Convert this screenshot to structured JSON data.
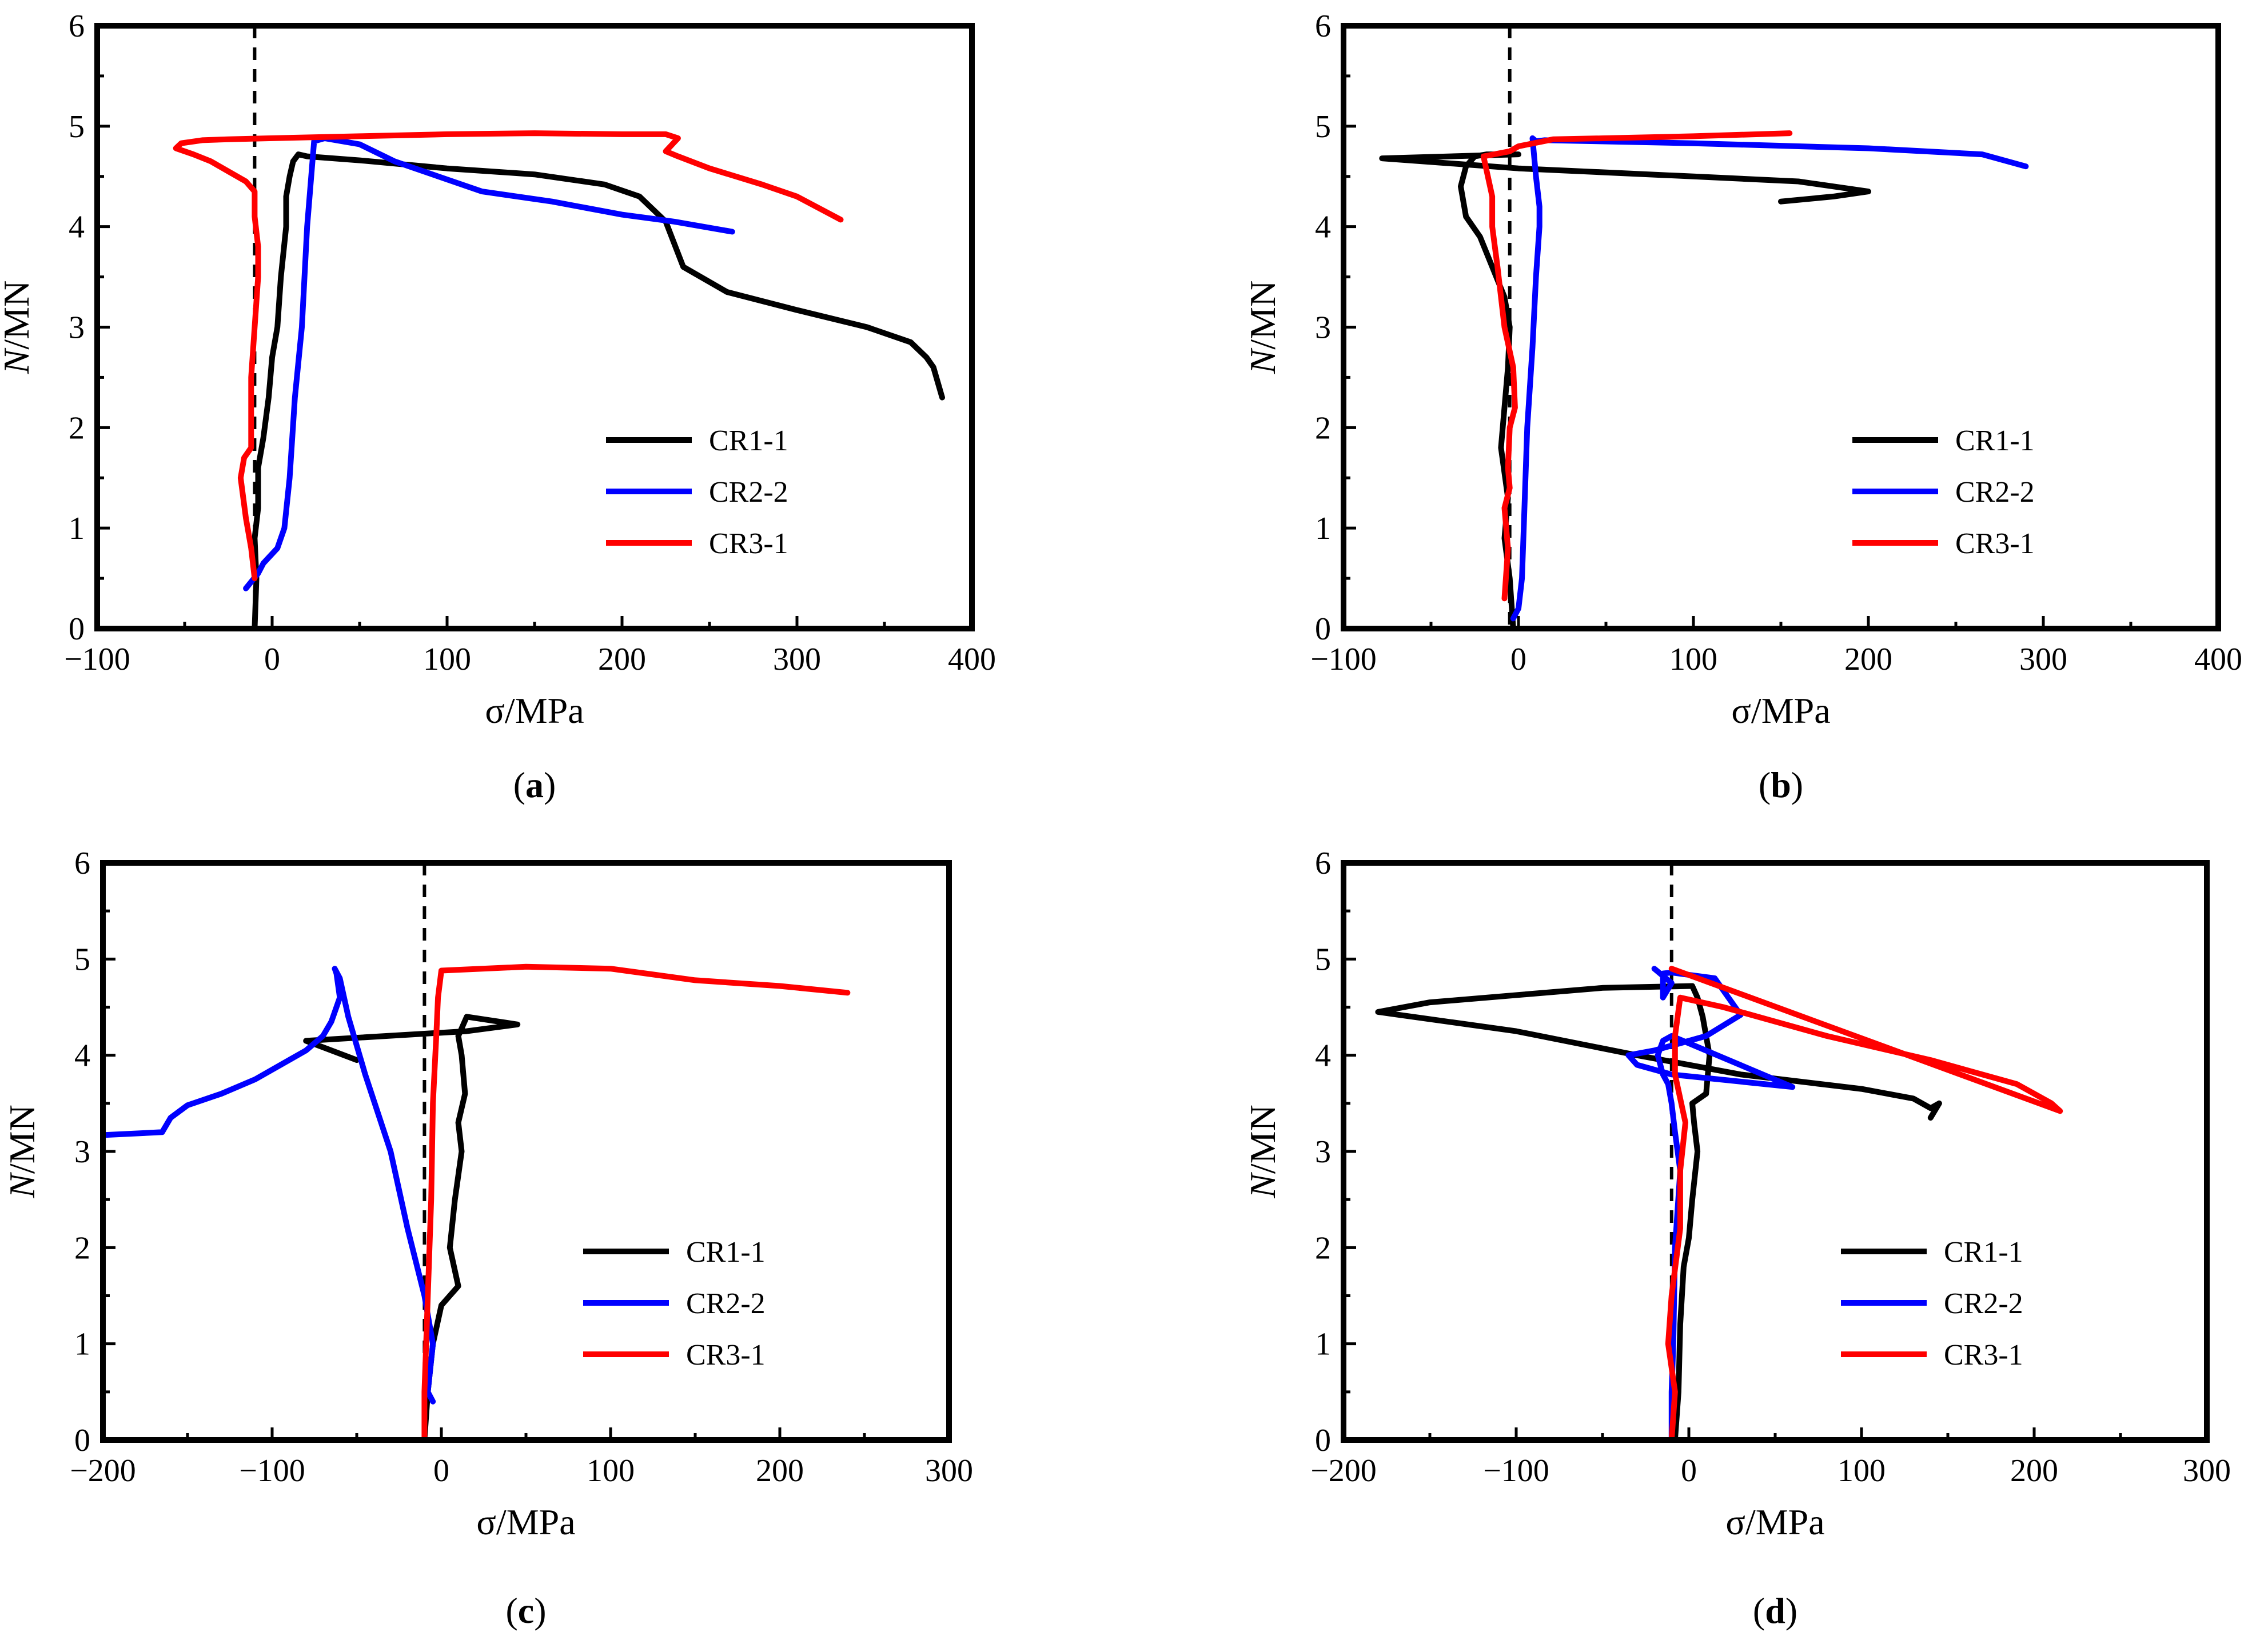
{
  "colors": {
    "CR1-1": "#000000",
    "CR2-2": "#0000ff",
    "CR3-1": "#ff0000"
  },
  "chart_data": [
    {
      "type": "line",
      "panel": "a",
      "caption": "(a)",
      "xlabel": "σ/MPa",
      "ylabel": "N/MN",
      "ylabel_italic": "N",
      "ylabel_rest": "/MN",
      "xlim": [
        -100,
        400
      ],
      "ylim": [
        0,
        6
      ],
      "xticks": [
        -100,
        0,
        100,
        200,
        300,
        400
      ],
      "xtick_labels": [
        "−100",
        "0",
        "100",
        "200",
        "300",
        "400"
      ],
      "yticks": [
        0,
        1,
        2,
        3,
        4,
        5,
        6
      ],
      "ytick_labels": [
        "0",
        "1",
        "2",
        "3",
        "4",
        "5",
        "6"
      ],
      "reference_line_x": -10,
      "legend": [
        "CR1-1",
        "CR2-2",
        "CR3-1"
      ],
      "legend_position": "bottom-right",
      "series": [
        {
          "name": "CR1-1",
          "x": [
            -10,
            -9,
            -10,
            -8,
            -8,
            -5,
            -2,
            0,
            3,
            5,
            8,
            8,
            10,
            12,
            15,
            20,
            50,
            100,
            150,
            190,
            210,
            225,
            235,
            260,
            300,
            340,
            365,
            374,
            378,
            383
          ],
          "y": [
            0,
            0.5,
            0.9,
            1.2,
            1.6,
            1.9,
            2.3,
            2.7,
            3.0,
            3.5,
            4.0,
            4.3,
            4.5,
            4.65,
            4.72,
            4.7,
            4.66,
            4.58,
            4.52,
            4.42,
            4.3,
            4.05,
            3.6,
            3.35,
            3.17,
            3.0,
            2.85,
            2.7,
            2.6,
            2.3
          ]
        },
        {
          "name": "CR2-2",
          "x": [
            -15,
            -8,
            -5,
            3,
            7,
            10,
            13,
            17,
            20,
            24,
            30,
            50,
            70,
            95,
            120,
            160,
            200,
            230,
            263
          ],
          "y": [
            0.4,
            0.55,
            0.65,
            0.8,
            1.0,
            1.5,
            2.3,
            3.0,
            4.0,
            4.85,
            4.88,
            4.82,
            4.65,
            4.5,
            4.35,
            4.25,
            4.12,
            4.05,
            3.95
          ]
        },
        {
          "name": "CR3-1",
          "x": [
            -10,
            -12,
            -15,
            -18,
            -16,
            -12,
            -12,
            -10,
            -8,
            -8,
            -10,
            -10,
            -15,
            -25,
            -35,
            -45,
            -55,
            -52,
            -40,
            -25,
            0,
            50,
            100,
            150,
            200,
            225,
            232,
            225,
            232,
            250,
            280,
            300,
            325
          ],
          "y": [
            0.5,
            0.8,
            1.1,
            1.5,
            1.7,
            1.8,
            2.5,
            3.0,
            3.5,
            3.8,
            4.1,
            4.35,
            4.45,
            4.55,
            4.65,
            4.72,
            4.78,
            4.83,
            4.86,
            4.87,
            4.88,
            4.9,
            4.92,
            4.93,
            4.92,
            4.92,
            4.88,
            4.75,
            4.7,
            4.58,
            4.42,
            4.3,
            4.07
          ]
        }
      ]
    },
    {
      "type": "line",
      "panel": "b",
      "caption": "(b)",
      "xlabel": "σ/MPa",
      "ylabel": "N/MN",
      "ylabel_italic": "N",
      "ylabel_rest": "/MN",
      "xlim": [
        -100,
        400
      ],
      "ylim": [
        0,
        6
      ],
      "xticks": [
        -100,
        0,
        100,
        200,
        300,
        400
      ],
      "xtick_labels": [
        "−100",
        "0",
        "100",
        "200",
        "300",
        "400"
      ],
      "yticks": [
        0,
        1,
        2,
        3,
        4,
        5,
        6
      ],
      "ytick_labels": [
        "0",
        "1",
        "2",
        "3",
        "4",
        "5",
        "6"
      ],
      "reference_line_x": -5,
      "legend": [
        "CR1-1",
        "CR2-2",
        "CR3-1"
      ],
      "legend_position": "bottom-right",
      "series": [
        {
          "name": "CR1-1",
          "x": [
            -3,
            -5,
            -8,
            -6,
            -10,
            -8,
            -6,
            -5,
            -8,
            -15,
            -22,
            -30,
            -33,
            -30,
            -25,
            -18,
            0,
            -78,
            0,
            100,
            160,
            200,
            180,
            150
          ],
          "y": [
            0,
            0.5,
            0.9,
            1.3,
            1.8,
            2.2,
            2.6,
            3.0,
            3.3,
            3.6,
            3.9,
            4.1,
            4.4,
            4.6,
            4.7,
            4.72,
            4.72,
            4.68,
            4.58,
            4.5,
            4.45,
            4.35,
            4.3,
            4.25
          ]
        },
        {
          "name": "CR2-2",
          "x": [
            -3,
            0,
            2,
            3,
            5,
            8,
            10,
            12,
            12,
            10,
            8,
            10,
            15,
            100,
            200,
            265,
            290
          ],
          "y": [
            0.1,
            0.2,
            0.5,
            1.0,
            2.0,
            2.8,
            3.5,
            4.0,
            4.2,
            4.5,
            4.88,
            4.85,
            4.86,
            4.83,
            4.78,
            4.72,
            4.6
          ]
        },
        {
          "name": "CR3-1",
          "x": [
            -8,
            -6,
            -8,
            -5,
            -6,
            -5,
            -2,
            -3,
            -8,
            -12,
            -15,
            -15,
            -20,
            -5,
            0,
            20,
            50,
            100,
            155
          ],
          "y": [
            0.3,
            0.8,
            1.2,
            1.4,
            1.6,
            2.0,
            2.2,
            2.6,
            3.0,
            3.6,
            4.0,
            4.3,
            4.7,
            4.75,
            4.8,
            4.87,
            4.88,
            4.9,
            4.93
          ]
        }
      ]
    },
    {
      "type": "line",
      "panel": "c",
      "caption": "(c)",
      "xlabel": "σ/MPa",
      "ylabel": "N/MN",
      "ylabel_italic": "N",
      "ylabel_rest": "/MN",
      "xlim": [
        -200,
        300
      ],
      "ylim": [
        0,
        6
      ],
      "xticks": [
        -200,
        -100,
        0,
        100,
        200,
        300
      ],
      "xtick_labels": [
        "−200",
        "−100",
        "0",
        "100",
        "200",
        "300"
      ],
      "yticks": [
        0,
        1,
        2,
        3,
        4,
        5,
        6
      ],
      "ytick_labels": [
        "0",
        "1",
        "2",
        "3",
        "4",
        "5",
        "6"
      ],
      "reference_line_x": -10,
      "legend": [
        "CR1-1",
        "CR2-2",
        "CR3-1"
      ],
      "legend_position": "bottom-right",
      "series": [
        {
          "name": "CR1-1",
          "x": [
            -10,
            -8,
            -5,
            0,
            5,
            10,
            5,
            8,
            12,
            10,
            14,
            12,
            10,
            15,
            45,
            15,
            -80,
            -50
          ],
          "y": [
            0,
            0.5,
            1.0,
            1.4,
            1.5,
            1.6,
            2.0,
            2.5,
            3.0,
            3.3,
            3.6,
            4.0,
            4.2,
            4.4,
            4.32,
            4.25,
            4.15,
            3.95
          ]
        },
        {
          "name": "CR2-2",
          "x": [
            -5,
            -8,
            -5,
            -10,
            -20,
            -30,
            -45,
            -55,
            -60,
            -63,
            -62,
            -60,
            -65,
            -70,
            -80,
            -90,
            -110,
            -130,
            -150,
            -160,
            -165,
            -200
          ],
          "y": [
            0.4,
            0.5,
            1.0,
            1.5,
            2.2,
            3.0,
            3.8,
            4.4,
            4.8,
            4.9,
            4.85,
            4.6,
            4.35,
            4.2,
            4.05,
            3.95,
            3.75,
            3.6,
            3.48,
            3.35,
            3.2,
            3.17
          ]
        },
        {
          "name": "CR3-1",
          "x": [
            -10,
            -10,
            -9,
            -8,
            -6,
            -5,
            -3,
            -2,
            0,
            50,
            100,
            150,
            200,
            240
          ],
          "y": [
            0,
            0.5,
            1.0,
            1.5,
            2.5,
            3.5,
            4.2,
            4.6,
            4.88,
            4.92,
            4.9,
            4.78,
            4.72,
            4.65
          ]
        }
      ]
    },
    {
      "type": "line",
      "panel": "d",
      "caption": "(d)",
      "xlabel": "σ/MPa",
      "ylabel": "N/MN",
      "ylabel_italic": "N",
      "ylabel_rest": "/MN",
      "xlim": [
        -200,
        300
      ],
      "ylim": [
        0,
        6
      ],
      "xticks": [
        -200,
        -100,
        0,
        100,
        200,
        300
      ],
      "xtick_labels": [
        "−200",
        "−100",
        "0",
        "100",
        "200",
        "300"
      ],
      "yticks": [
        0,
        1,
        2,
        3,
        4,
        5,
        6
      ],
      "ytick_labels": [
        "0",
        "1",
        "2",
        "3",
        "4",
        "5",
        "6"
      ],
      "reference_line_x": -10,
      "legend": [
        "CR1-1",
        "CR2-2",
        "CR3-1"
      ],
      "legend_position": "bottom-right",
      "series": [
        {
          "name": "CR1-1",
          "x": [
            -8,
            -6,
            -5,
            -3,
            0,
            2,
            5,
            3,
            2,
            10,
            12,
            8,
            5,
            2,
            -50,
            -150,
            -180,
            -100,
            -30,
            30,
            100,
            130,
            140,
            145,
            140
          ],
          "y": [
            0,
            0.5,
            1.2,
            1.8,
            2.1,
            2.5,
            3.0,
            3.3,
            3.5,
            3.6,
            4.0,
            4.4,
            4.6,
            4.72,
            4.7,
            4.55,
            4.45,
            4.25,
            4.0,
            3.8,
            3.65,
            3.55,
            3.45,
            3.5,
            3.35
          ]
        },
        {
          "name": "CR2-2",
          "x": [
            -10,
            -10,
            -9,
            -8,
            -5,
            -8,
            -10,
            -12,
            -15,
            -18,
            -15,
            -10,
            60,
            -10,
            -30,
            -35,
            -20,
            10,
            30,
            15,
            -10,
            -15,
            -15,
            -10,
            -20
          ],
          "y": [
            0,
            0.5,
            1.0,
            2.0,
            2.8,
            3.2,
            3.5,
            3.7,
            3.8,
            4.0,
            4.15,
            4.2,
            3.67,
            3.8,
            3.9,
            4.0,
            4.05,
            4.2,
            4.42,
            4.8,
            4.86,
            4.85,
            4.6,
            4.75,
            4.9
          ]
        },
        {
          "name": "CR3-1",
          "x": [
            -10,
            -8,
            -12,
            -10,
            -5,
            -5,
            -2,
            -8,
            -8,
            -5,
            20,
            80,
            140,
            190,
            200,
            210,
            215,
            -10
          ],
          "y": [
            0,
            0.5,
            1.0,
            1.5,
            2.2,
            2.8,
            3.3,
            3.8,
            4.2,
            4.6,
            4.5,
            4.2,
            3.95,
            3.7,
            3.6,
            3.5,
            3.42,
            4.9
          ]
        }
      ]
    }
  ]
}
